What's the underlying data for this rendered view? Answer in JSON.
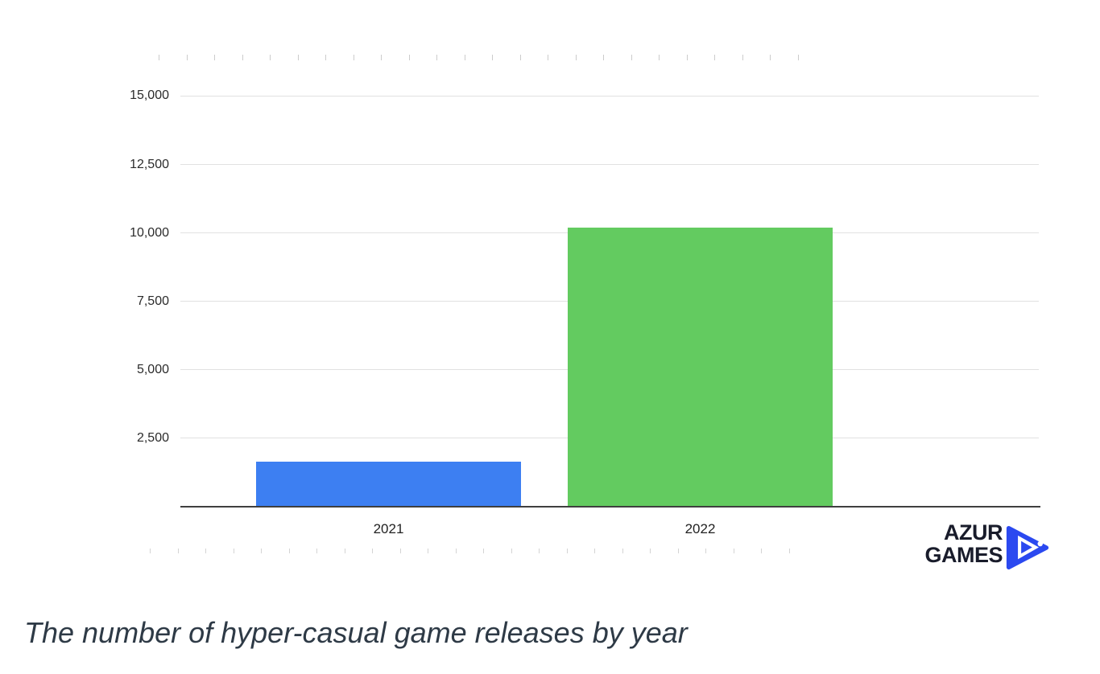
{
  "chart_data": {
    "type": "bar",
    "title": "",
    "categories": [
      "2021",
      "2022"
    ],
    "values": [
      1650,
      10180
    ],
    "bar_colors": [
      "#3d7ff2",
      "#63cb60"
    ],
    "xlabel": "",
    "ylabel": "",
    "ylim": [
      0,
      15800
    ],
    "yticks": [
      2500,
      5000,
      7500,
      10000,
      12500,
      15000
    ],
    "ytick_labels": [
      "2,500",
      "5,000",
      "7,500",
      "10,000",
      "12,500",
      "15,000"
    ],
    "grid": "horizontal-only",
    "legend": "none",
    "minor_tick_rows": "top-and-bottom"
  },
  "caption": "The number of hyper-casual game releases by year",
  "logo": {
    "line1": "AZUR",
    "line2": "GAMES",
    "icon": "play-triangle-icon",
    "text_color": "#191c2b",
    "accent_color": "#2b49f0"
  },
  "colors": {
    "background": "#ffffff",
    "gridline": "#e1e1e1",
    "axis_baseline": "#3f3f3f",
    "minor_tick": "#cccccc",
    "tick_text": "#2b2b2b",
    "bar_2021": "#3d7ff2",
    "bar_2022": "#63cb60",
    "caption_text": "#2e3a46"
  }
}
